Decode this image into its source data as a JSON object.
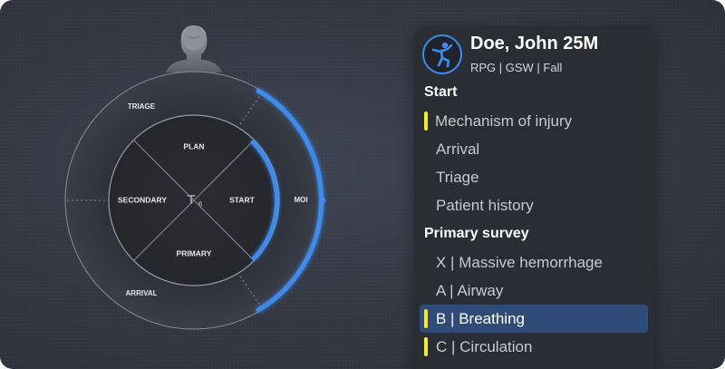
{
  "dial": {
    "outer_segments": [
      "TRIAGE",
      "MOI",
      "ARRIVAL"
    ],
    "inner_segments": [
      "PLAN",
      "START",
      "PRIMARY",
      "SECONDARY"
    ],
    "center_logo": "T",
    "center_logo_sub": "6",
    "accent_color": "#3d8bef"
  },
  "patient": {
    "name": "Doe, John 25M",
    "meta": "RPG | GSW | Fall",
    "icon": "person-falling-icon"
  },
  "sections": [
    {
      "title": "Start",
      "items": [
        {
          "label": "Mechanism of injury",
          "marked": true,
          "active": false
        },
        {
          "label": "Arrival",
          "marked": false,
          "active": false
        },
        {
          "label": "Triage",
          "marked": false,
          "active": false
        },
        {
          "label": "Patient history",
          "marked": false,
          "active": false
        }
      ]
    },
    {
      "title": "Primary survey",
      "items": [
        {
          "label": "X | Massive hemorrhage",
          "marked": false,
          "active": false
        },
        {
          "label": "A | Airway",
          "marked": false,
          "active": false
        },
        {
          "label": "B | Breathing",
          "marked": true,
          "active": true
        },
        {
          "label": "C | Circulation",
          "marked": true,
          "active": false
        }
      ]
    }
  ],
  "colors": {
    "marker": "#f3ee1a",
    "active_row": "#2f4b78",
    "panel": "#2a2d34"
  }
}
